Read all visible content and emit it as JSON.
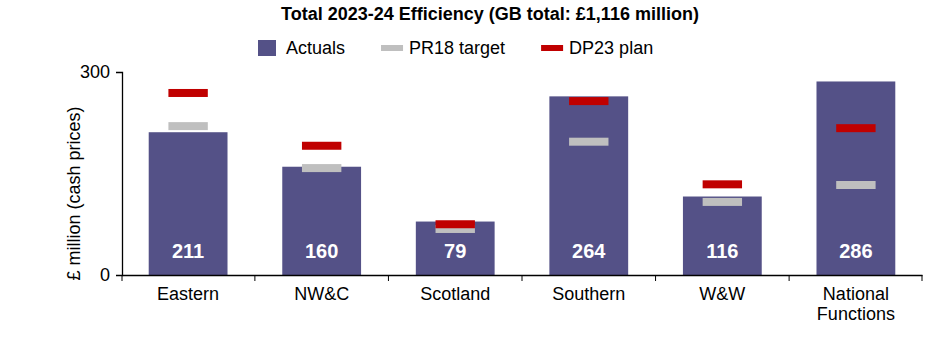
{
  "chart_data": {
    "type": "bar",
    "title": "Total 2023-24 Efficiency (GB total: £1,116 million)",
    "y_label": "£ million (cash prices)",
    "categories": [
      "Eastern",
      "NW&C",
      "Scotland",
      "Southern",
      "W&W",
      "National Functions"
    ],
    "series": [
      {
        "name": "Actuals",
        "type": "bar",
        "color": "#545187",
        "values": [
          211,
          160,
          79,
          264,
          116,
          286
        ]
      },
      {
        "name": "PR18 target",
        "type": "scatter",
        "marker": "dash",
        "color": "#bfbfbf",
        "values": [
          220,
          158,
          68,
          197,
          108,
          133
        ]
      },
      {
        "name": "DP23 plan",
        "type": "scatter",
        "marker": "dash",
        "color": "#c00000",
        "values": [
          269,
          191,
          75,
          257,
          134,
          217
        ]
      }
    ],
    "ylim": [
      0,
      300
    ],
    "yticks": [
      0,
      300
    ],
    "grid": false,
    "legend": "top",
    "data_labels": true
  }
}
